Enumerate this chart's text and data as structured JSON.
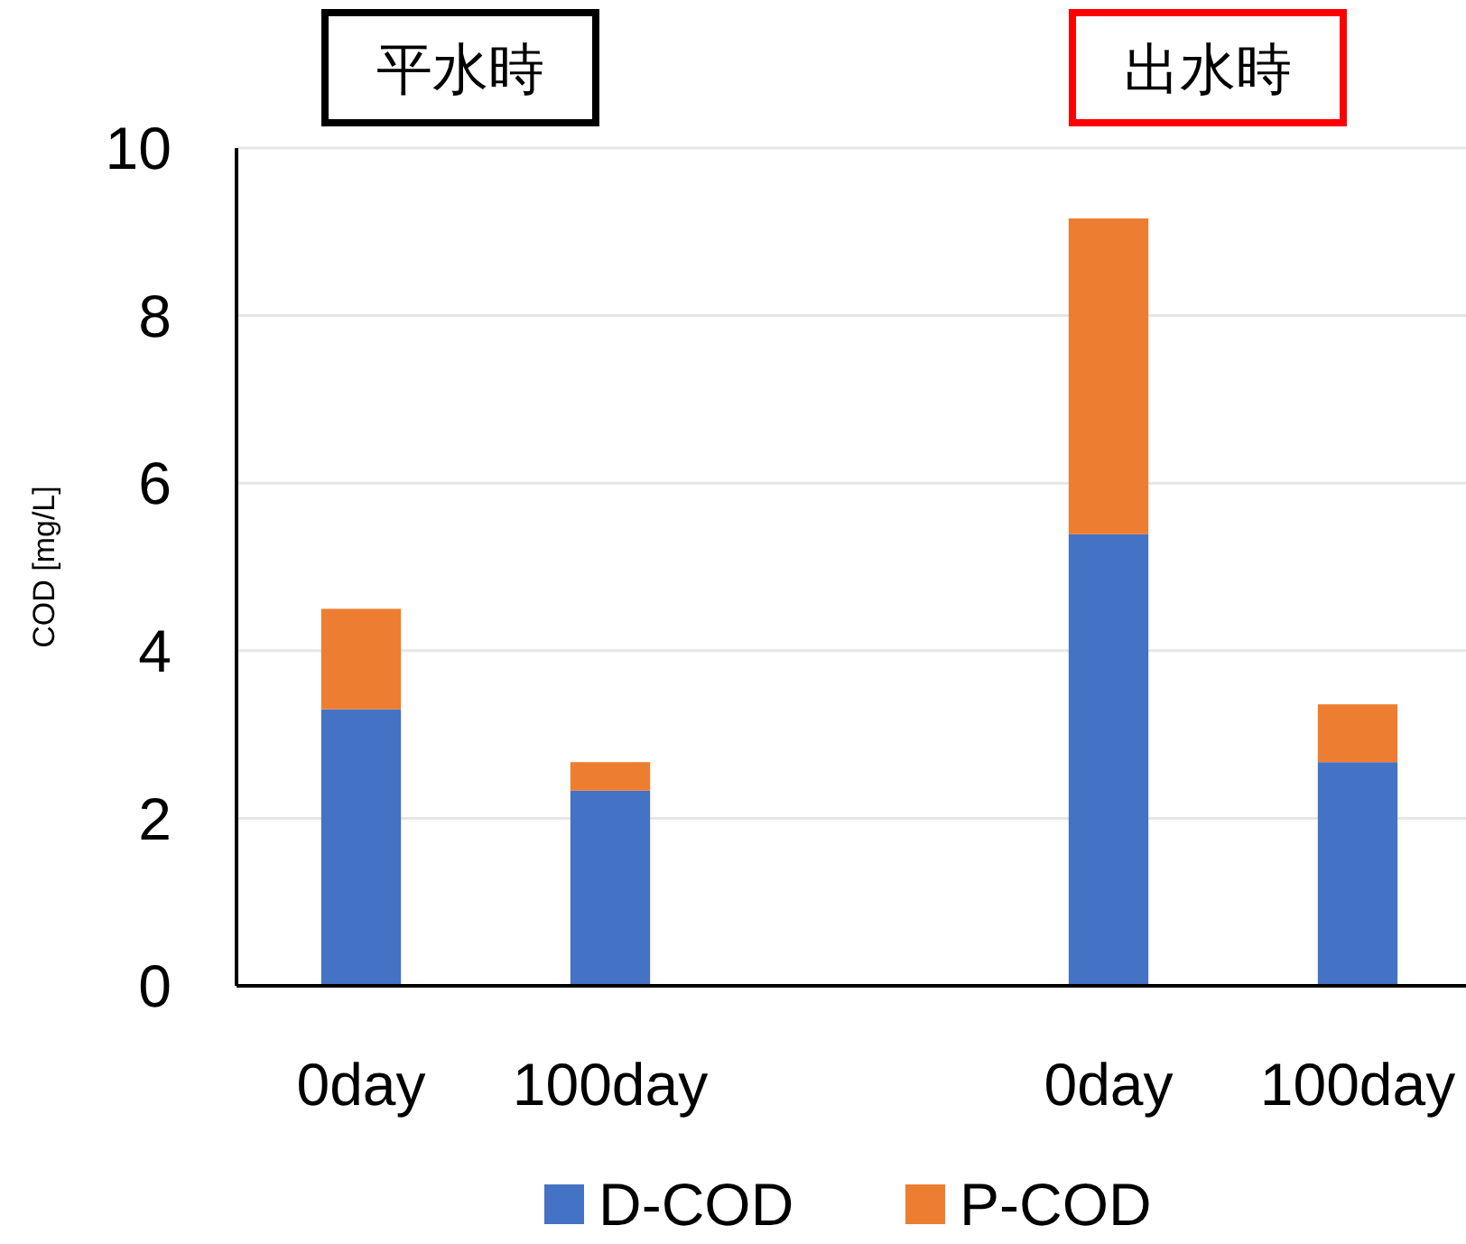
{
  "chart_data": {
    "type": "bar",
    "stacked": true,
    "ylabel": "COD [mg/L]",
    "categories": [
      "0day",
      "100day",
      null,
      "0day",
      "100day"
    ],
    "series": [
      {
        "name": "D-COD",
        "color": "#4472c4",
        "values": [
          3.3,
          2.33,
          null,
          5.39,
          2.67
        ]
      },
      {
        "name": "P-COD",
        "color": "#ed7d31",
        "values": [
          1.2,
          0.34,
          null,
          3.77,
          0.69
        ]
      }
    ],
    "ylim": [
      0,
      10
    ],
    "yticks": [
      0,
      2,
      4,
      6,
      8,
      10
    ],
    "grid": "y",
    "legend": "bottom",
    "annotations": [
      "平水時",
      "出水時"
    ]
  }
}
